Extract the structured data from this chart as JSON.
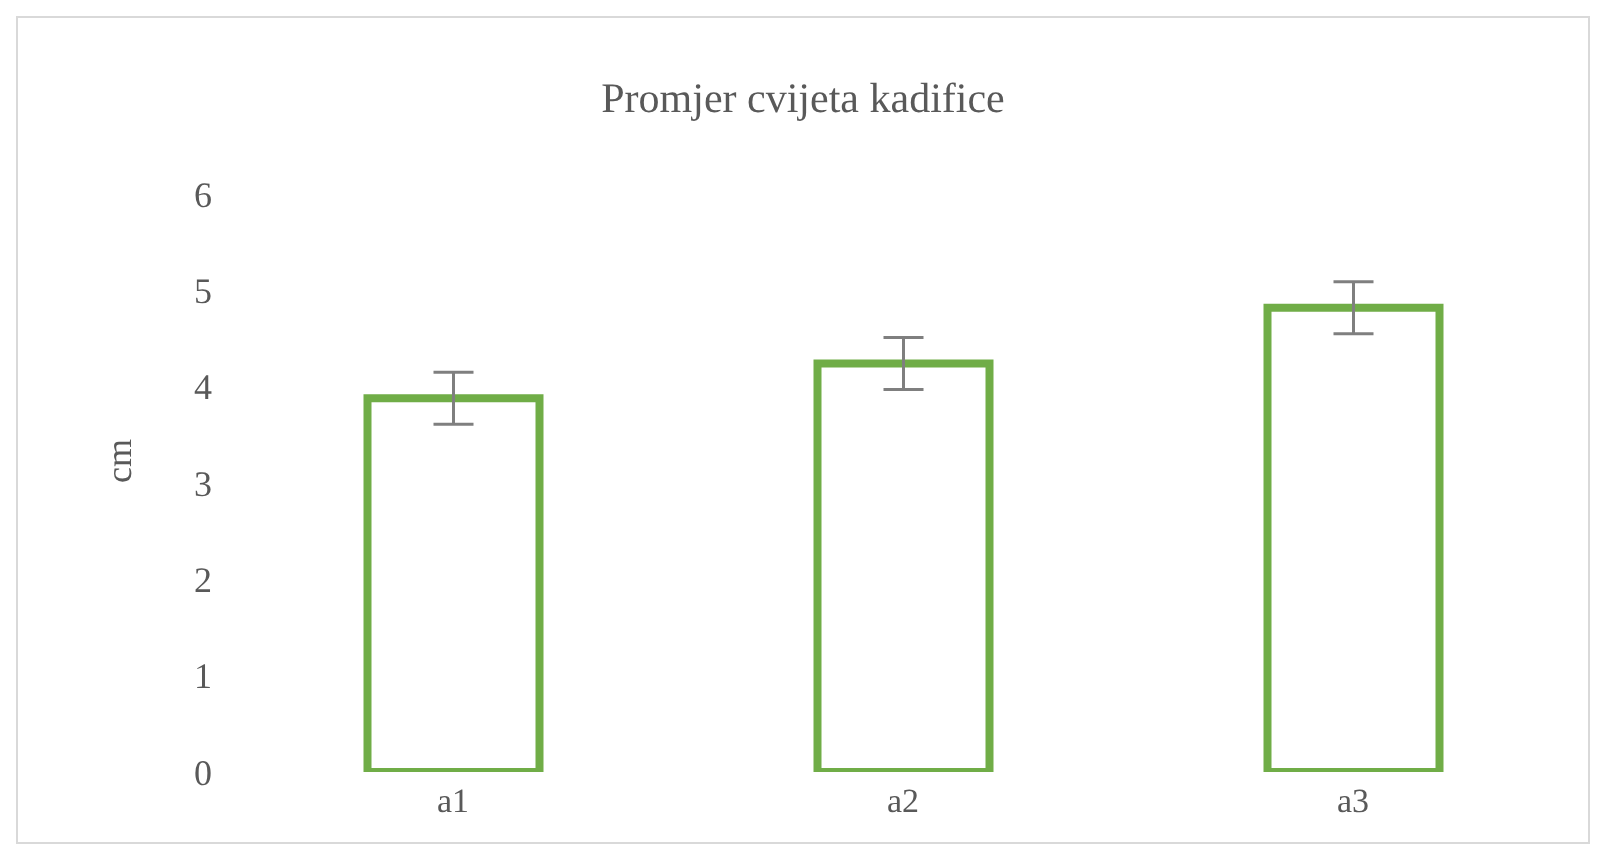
{
  "chart_data": {
    "type": "bar",
    "title": "Promjer cvijeta kadifice",
    "ylabel": "cm",
    "categories": [
      "a1",
      "a2",
      "a3"
    ],
    "values": [
      3.88,
      4.24,
      4.82
    ],
    "errors": [
      0.27,
      0.27,
      0.27
    ],
    "color": "#70ad47",
    "ylim": [
      0,
      6
    ],
    "yticks": [
      0,
      1,
      2,
      3,
      4,
      5,
      6
    ],
    "grid": false,
    "legend": false
  }
}
